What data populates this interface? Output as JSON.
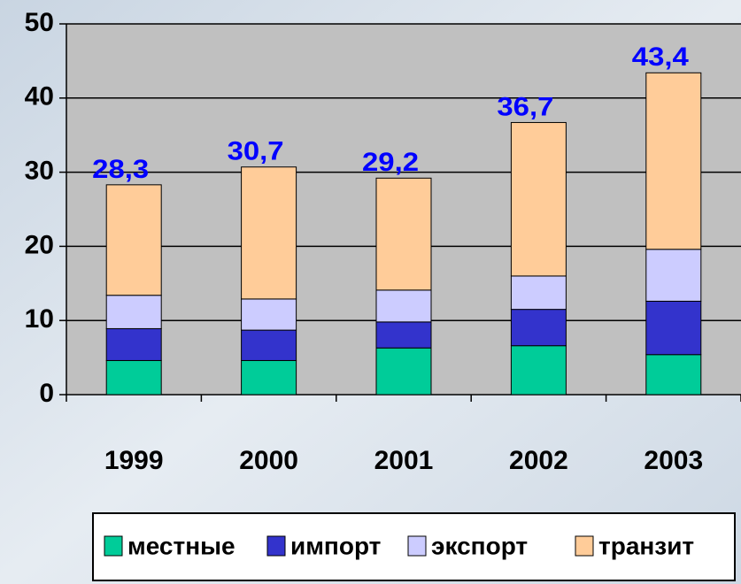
{
  "chart_data": {
    "type": "stacked_bar",
    "categories": [
      "1999",
      "2000",
      "2001",
      "2002",
      "2003"
    ],
    "series": [
      {
        "name": "местные",
        "color": "#00cc99",
        "values": [
          4.6,
          4.6,
          6.3,
          6.6,
          5.4
        ]
      },
      {
        "name": "импорт",
        "color": "#3333cc",
        "values": [
          4.3,
          4.1,
          3.5,
          4.9,
          7.2
        ]
      },
      {
        "name": "экспорт",
        "color": "#ccccff",
        "values": [
          4.5,
          4.2,
          4.3,
          4.5,
          7.0
        ]
      },
      {
        "name": "транзит",
        "color": "#ffcc99",
        "values": [
          14.9,
          17.8,
          15.1,
          20.7,
          23.8
        ]
      }
    ],
    "totals": [
      28.3,
      30.7,
      29.2,
      36.7,
      43.4
    ],
    "total_labels": [
      "28,3",
      "30,7",
      "29,2",
      "36,7",
      "43,4"
    ],
    "ylim": [
      0,
      50
    ],
    "yticks": [
      0,
      10,
      20,
      30,
      40,
      50
    ],
    "grid": true
  }
}
